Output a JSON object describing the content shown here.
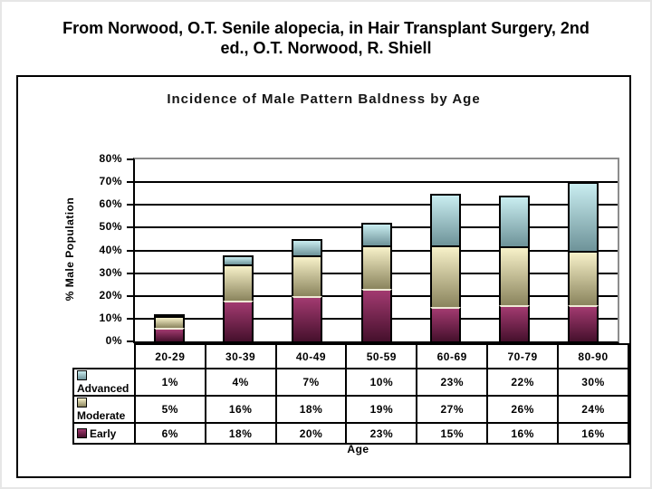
{
  "caption_line1": "From Norwood, O.T. Senile alopecia, in Hair Transplant Surgery, 2nd",
  "caption_line2": "ed., O.T. Norwood, R. Shiell",
  "chart_data": {
    "type": "bar",
    "stacked": true,
    "title": "Incidence of Male Pattern Baldness by Age",
    "xlabel": "Age",
    "ylabel": "% Male Population",
    "ylim": [
      0,
      80
    ],
    "yticks": [
      0,
      10,
      20,
      30,
      40,
      50,
      60,
      70,
      80
    ],
    "ytick_suffix": "%",
    "grid": true,
    "legend_position": "data-table-left",
    "data_table_shown": true,
    "categories": [
      "20-29",
      "30-39",
      "40-49",
      "50-59",
      "60-69",
      "70-79",
      "80-90"
    ],
    "series": [
      {
        "name": "Advanced",
        "values": [
          1,
          4,
          7,
          10,
          23,
          22,
          30
        ],
        "cell_labels": [
          "1%",
          "4%",
          "7%",
          "10%",
          "23%",
          "22%",
          "30%"
        ],
        "color_top": "#c9edf0",
        "color_bottom": "#6e9399"
      },
      {
        "name": "Moderate",
        "values": [
          5,
          16,
          18,
          19,
          27,
          26,
          24
        ],
        "cell_labels": [
          "5%",
          "16%",
          "18%",
          "19%",
          "27%",
          "26%",
          "24%"
        ],
        "color_top": "#f7f1c9",
        "color_bottom": "#8a845d"
      },
      {
        "name": "Early",
        "values": [
          6,
          18,
          20,
          23,
          15,
          16,
          16
        ],
        "cell_labels": [
          "6%",
          "18%",
          "20%",
          "23%",
          "15%",
          "16%",
          "16%"
        ],
        "color_top": "#a23a70",
        "color_bottom": "#45102c"
      }
    ],
    "stack_order_bottom_to_top": [
      "Early",
      "Moderate",
      "Advanced"
    ]
  },
  "colors": {
    "grid_line": "#000000",
    "plot_border_gray": "#8c8c8c",
    "frame_border": "#000000",
    "background": "#ffffff"
  }
}
